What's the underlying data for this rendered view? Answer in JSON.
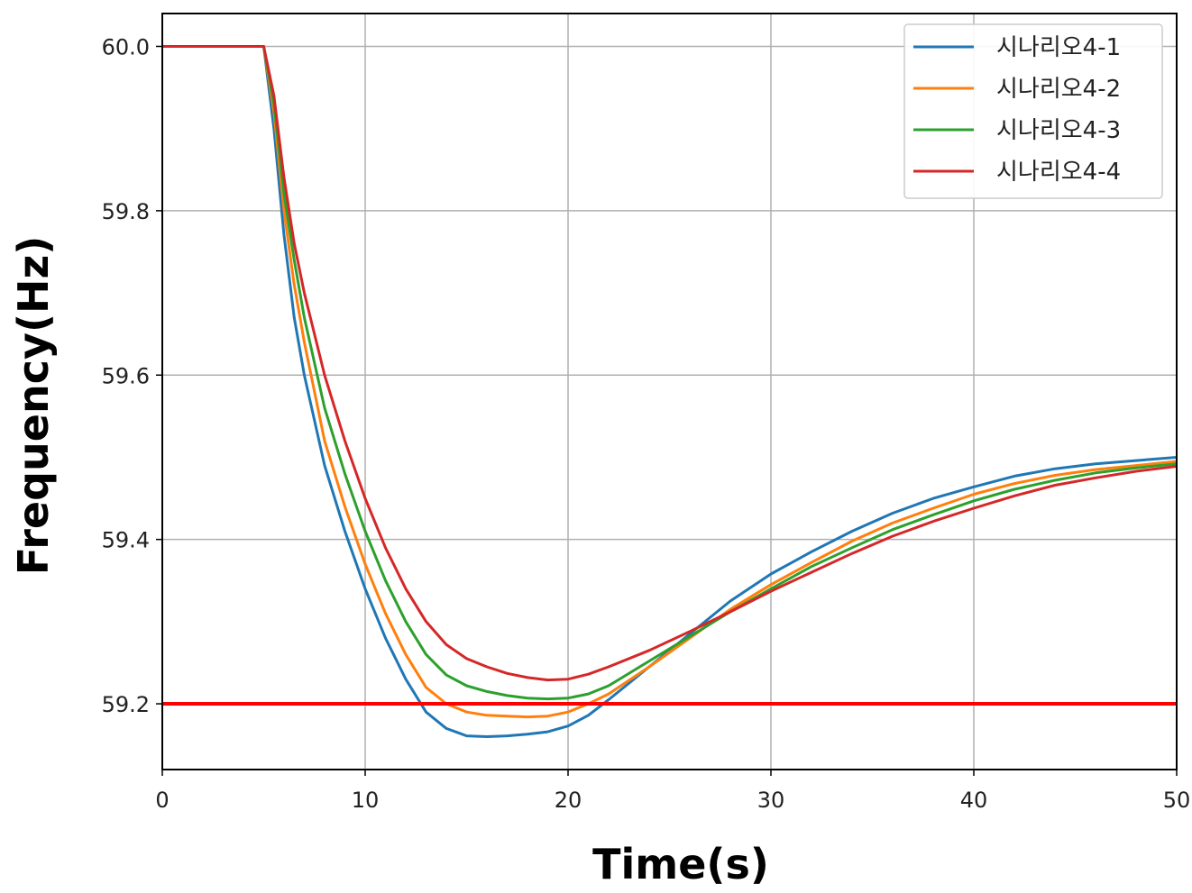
{
  "chart_data": {
    "type": "line",
    "xlabel": "Time(s)",
    "ylabel": "Frequency(Hz)",
    "xlim": [
      0,
      50
    ],
    "ylim": [
      59.12,
      60.04
    ],
    "xticks": [
      "0",
      "10",
      "20",
      "30",
      "40",
      "50"
    ],
    "yticks": [
      "59.2",
      "59.4",
      "59.6",
      "59.8",
      "60.0"
    ],
    "grid": true,
    "legend_position": "top-right",
    "reference_line": {
      "y": 59.2,
      "color": "#ff0000"
    },
    "series": [
      {
        "name": "시나리오4-1",
        "color": "#1f77b4",
        "x": [
          0,
          5,
          5.5,
          6,
          6.5,
          7,
          8,
          9,
          10,
          11,
          12,
          13,
          14,
          15,
          16,
          17,
          18,
          19,
          20,
          21,
          22,
          24,
          26,
          28,
          30,
          32,
          34,
          36,
          38,
          40,
          42,
          44,
          46,
          48,
          50
        ],
        "y": [
          60.0,
          60.0,
          59.9,
          59.77,
          59.67,
          59.6,
          59.49,
          59.41,
          59.34,
          59.28,
          59.23,
          59.19,
          59.17,
          59.161,
          59.16,
          59.161,
          59.163,
          59.166,
          59.173,
          59.186,
          59.205,
          59.245,
          59.285,
          59.325,
          59.358,
          59.385,
          59.41,
          59.432,
          59.45,
          59.464,
          59.477,
          59.486,
          59.492,
          59.496,
          59.5
        ]
      },
      {
        "name": "시나리오4-2",
        "color": "#ff7f0e",
        "x": [
          0,
          5,
          5.5,
          6,
          6.5,
          7,
          8,
          9,
          10,
          11,
          12,
          13,
          14,
          15,
          16,
          17,
          18,
          19,
          20,
          21,
          22,
          24,
          26,
          28,
          30,
          32,
          34,
          36,
          38,
          40,
          42,
          44,
          46,
          48,
          50
        ],
        "y": [
          60.0,
          60.0,
          59.92,
          59.8,
          59.71,
          59.64,
          59.52,
          59.44,
          59.37,
          59.31,
          59.26,
          59.22,
          59.2,
          59.19,
          59.186,
          59.185,
          59.184,
          59.185,
          59.19,
          59.2,
          59.212,
          59.245,
          59.28,
          59.315,
          59.345,
          59.372,
          59.398,
          59.42,
          59.438,
          59.455,
          59.468,
          59.478,
          59.485,
          59.49,
          59.495
        ]
      },
      {
        "name": "시나리오4-3",
        "color": "#2ca02c",
        "x": [
          0,
          5,
          5.5,
          6,
          6.5,
          7,
          8,
          9,
          10,
          11,
          12,
          13,
          14,
          15,
          16,
          17,
          18,
          19,
          20,
          21,
          22,
          24,
          26,
          28,
          30,
          32,
          34,
          36,
          38,
          40,
          42,
          44,
          46,
          48,
          50
        ],
        "y": [
          60.0,
          60.0,
          59.93,
          59.82,
          59.74,
          59.67,
          59.56,
          59.48,
          59.41,
          59.35,
          59.3,
          59.26,
          59.235,
          59.222,
          59.215,
          59.21,
          59.207,
          59.206,
          59.207,
          59.212,
          59.222,
          59.252,
          59.282,
          59.312,
          59.34,
          59.367,
          59.39,
          59.412,
          59.43,
          59.447,
          59.461,
          59.472,
          59.481,
          59.487,
          59.492
        ]
      },
      {
        "name": "시나리오4-4",
        "color": "#d62728",
        "x": [
          0,
          5,
          5.5,
          6,
          6.5,
          7,
          8,
          9,
          10,
          11,
          12,
          13,
          14,
          15,
          16,
          17,
          18,
          19,
          20,
          21,
          22,
          24,
          26,
          28,
          30,
          32,
          34,
          36,
          38,
          40,
          42,
          44,
          46,
          48,
          50
        ],
        "y": [
          60.0,
          60.0,
          59.94,
          59.84,
          59.76,
          59.7,
          59.6,
          59.52,
          59.45,
          59.39,
          59.34,
          59.3,
          59.272,
          59.255,
          59.245,
          59.237,
          59.232,
          59.229,
          59.23,
          59.236,
          59.245,
          59.265,
          59.288,
          59.312,
          59.337,
          59.36,
          59.383,
          59.404,
          59.422,
          59.438,
          59.453,
          59.466,
          59.475,
          59.483,
          59.489
        ]
      }
    ]
  }
}
